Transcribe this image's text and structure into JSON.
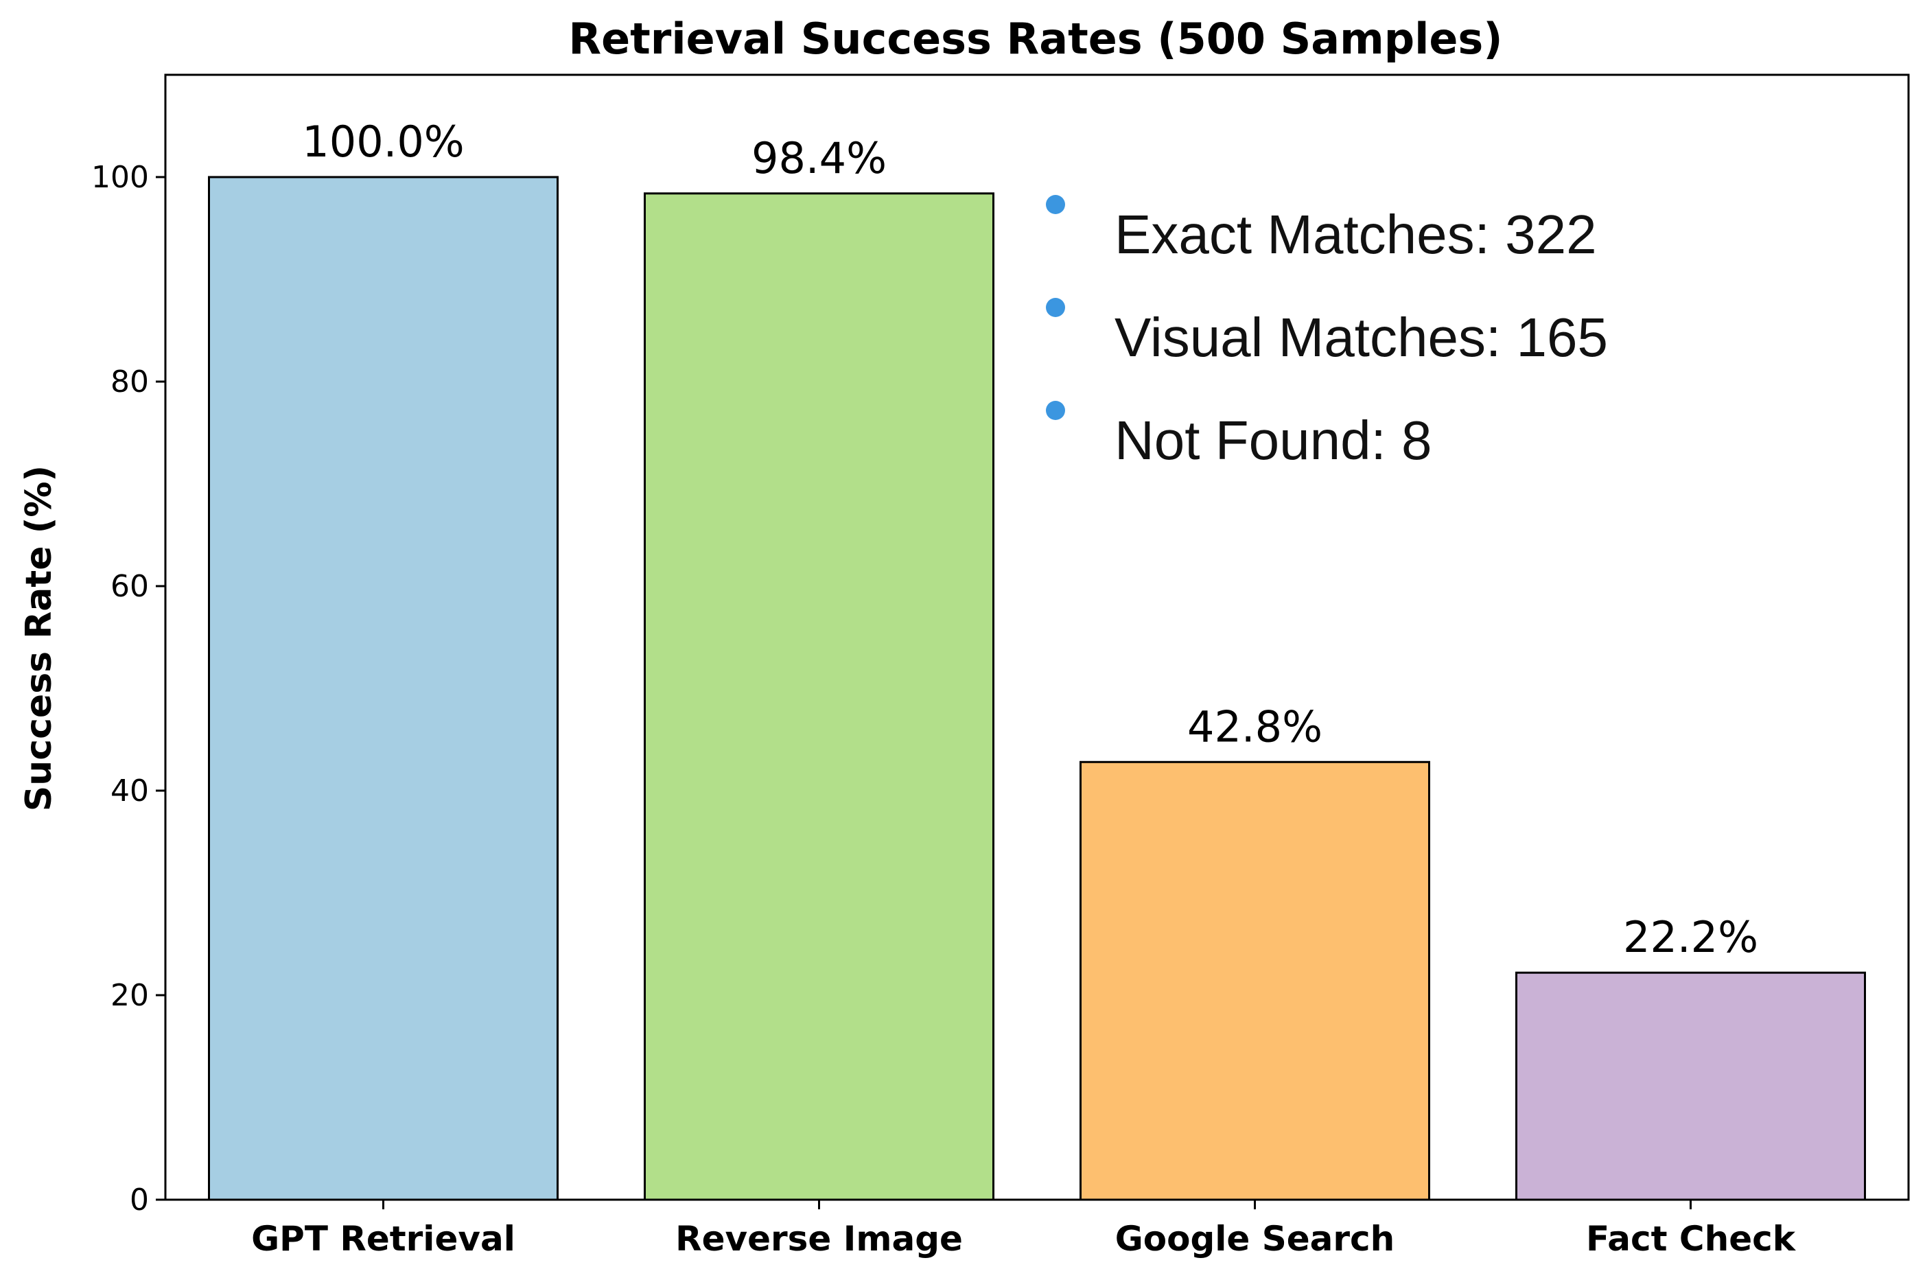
{
  "chart_data": {
    "type": "bar",
    "title": "Retrieval Success Rates (500 Samples)",
    "xlabel": "",
    "ylabel": "Success Rate (%)",
    "ylim": [
      0,
      110
    ],
    "yticks": [
      0,
      20,
      40,
      60,
      80,
      100
    ],
    "categories": [
      "GPT Retrieval",
      "Reverse Image",
      "Google Search",
      "Fact Check"
    ],
    "values": [
      100.0,
      98.4,
      42.8,
      22.2
    ],
    "value_labels": [
      "100.0%",
      "98.4%",
      "42.8%",
      "22.2%"
    ],
    "colors": [
      "#a6cee3",
      "#b2df8a",
      "#fdbf6f",
      "#cab2d6"
    ],
    "grid": false,
    "annotations": [
      {
        "text": "Exact Matches: 322"
      },
      {
        "text": "Visual Matches: 165"
      },
      {
        "text": "Not Found: 8"
      }
    ],
    "annotation_bullet_color": "#3b96e0",
    "annotation_placement": "top-right"
  }
}
